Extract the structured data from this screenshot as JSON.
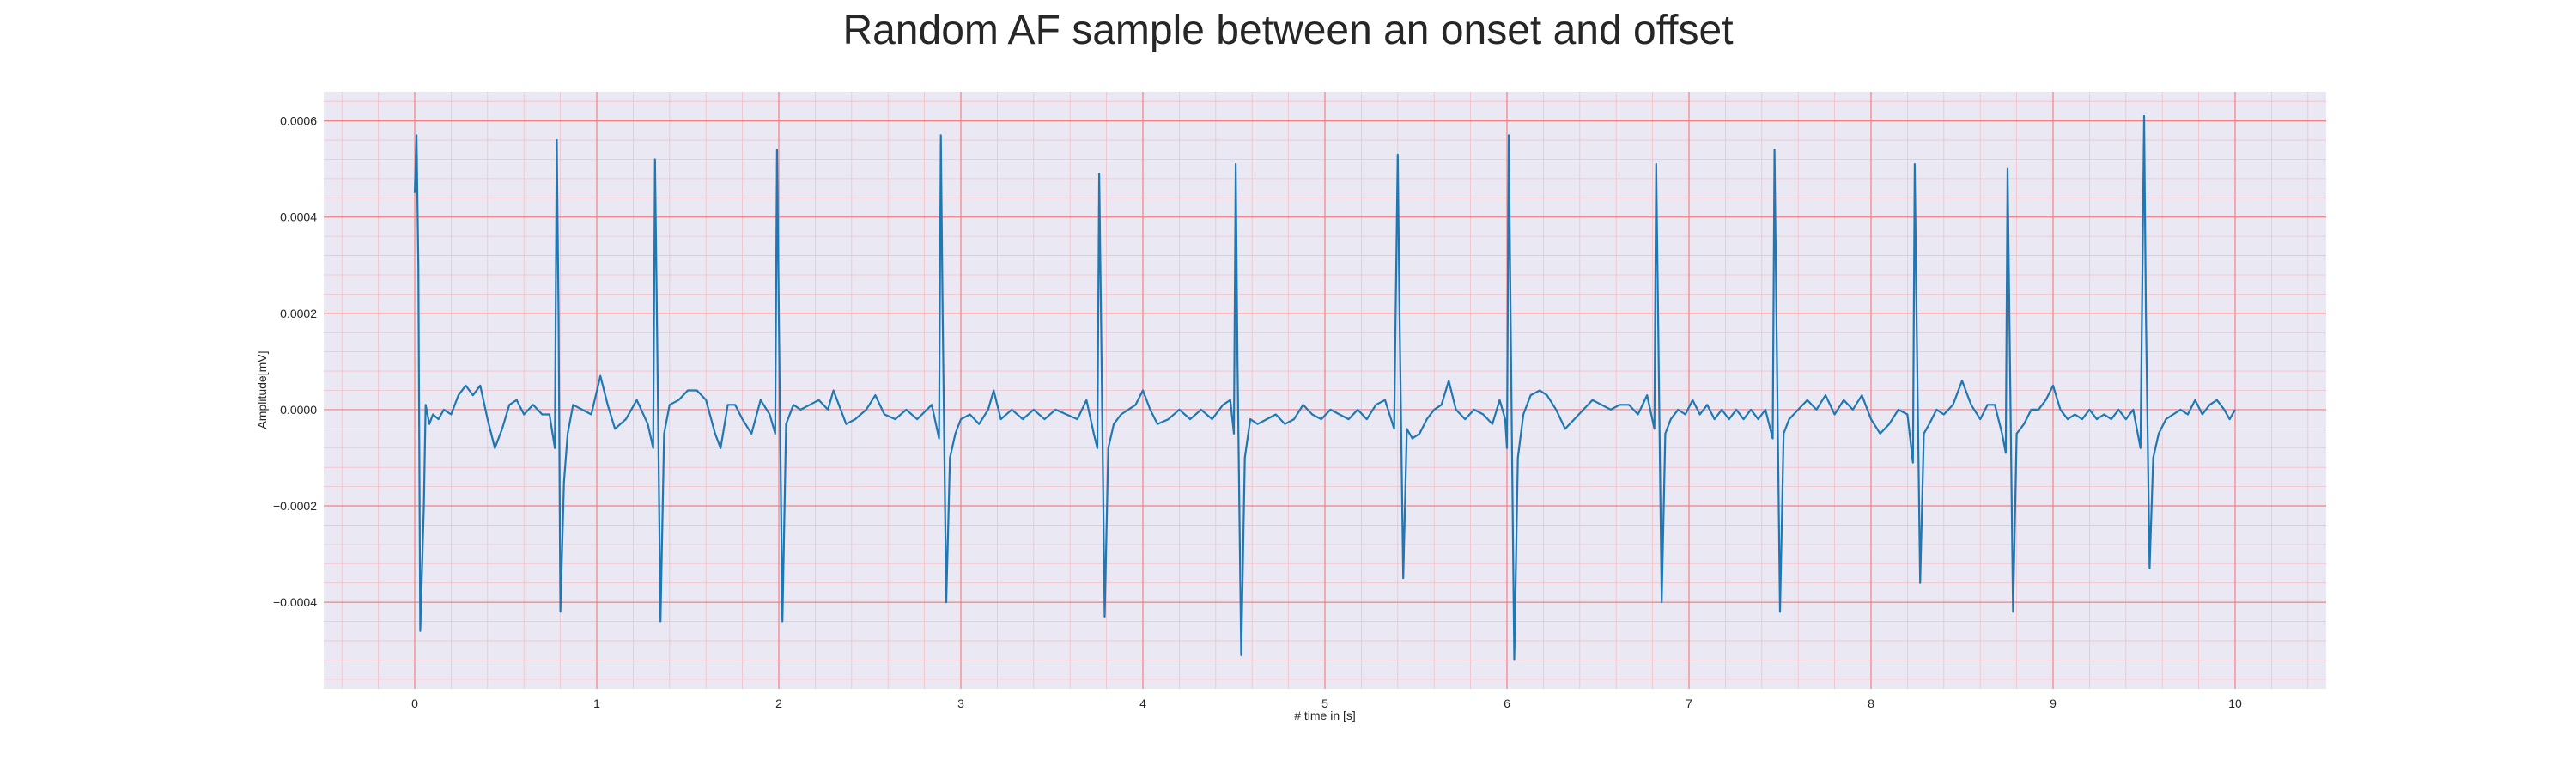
{
  "chart_data": {
    "type": "line",
    "title": "Random AF sample between an onset and offset",
    "xlabel": "# time in [s]",
    "ylabel": "Amplitude[mV]",
    "xlim": [
      -0.5,
      10.5
    ],
    "ylim": [
      -0.00058,
      0.00066
    ],
    "x_ticks": [
      0,
      1,
      2,
      3,
      4,
      5,
      6,
      7,
      8,
      9,
      10
    ],
    "x_tick_labels": [
      "0",
      "1",
      "2",
      "3",
      "4",
      "5",
      "6",
      "7",
      "8",
      "9",
      "10"
    ],
    "y_ticks": [
      -0.0004,
      -0.0002,
      0.0,
      0.0002,
      0.0004,
      0.0006
    ],
    "y_tick_labels": [
      "−0.0004",
      "−0.0002",
      "0.0000",
      "0.0002",
      "0.0004",
      "0.0006"
    ],
    "x_minor_step": 0.2,
    "y_minor_step": 4e-05,
    "grid": true,
    "background_color": "#eae9f3",
    "major_grid_color": "#f08080",
    "minor_grid_color": "#f5bfc8",
    "line_color": "#1f77b4",
    "series": [
      {
        "values": [
          [
            0.0,
            0.00045
          ],
          [
            0.01,
            0.00057
          ],
          [
            0.02,
            0.0003
          ],
          [
            0.03,
            -0.00046
          ],
          [
            0.05,
            -0.0002
          ],
          [
            0.06,
            1e-05
          ],
          [
            0.08,
            -3e-05
          ],
          [
            0.1,
            -1e-05
          ],
          [
            0.13,
            -2e-05
          ],
          [
            0.16,
            0.0
          ],
          [
            0.2,
            -1e-05
          ],
          [
            0.24,
            3e-05
          ],
          [
            0.28,
            5e-05
          ],
          [
            0.32,
            3e-05
          ],
          [
            0.36,
            5e-05
          ],
          [
            0.4,
            -2e-05
          ],
          [
            0.44,
            -8e-05
          ],
          [
            0.48,
            -4e-05
          ],
          [
            0.52,
            1e-05
          ],
          [
            0.56,
            2e-05
          ],
          [
            0.6,
            -1e-05
          ],
          [
            0.65,
            1e-05
          ],
          [
            0.7,
            -1e-05
          ],
          [
            0.74,
            -1e-05
          ],
          [
            0.77,
            -8e-05
          ],
          [
            0.78,
            0.00056
          ],
          [
            0.79,
            0.0002
          ],
          [
            0.8,
            -0.00042
          ],
          [
            0.82,
            -0.00015
          ],
          [
            0.84,
            -5e-05
          ],
          [
            0.87,
            1e-05
          ],
          [
            0.92,
            0.0
          ],
          [
            0.97,
            -1e-05
          ],
          [
            1.02,
            7e-05
          ],
          [
            1.06,
            1e-05
          ],
          [
            1.1,
            -4e-05
          ],
          [
            1.16,
            -2e-05
          ],
          [
            1.22,
            2e-05
          ],
          [
            1.28,
            -3e-05
          ],
          [
            1.31,
            -8e-05
          ],
          [
            1.32,
            0.00052
          ],
          [
            1.33,
            0.0002
          ],
          [
            1.35,
            -0.00044
          ],
          [
            1.37,
            -5e-05
          ],
          [
            1.4,
            1e-05
          ],
          [
            1.45,
            2e-05
          ],
          [
            1.5,
            4e-05
          ],
          [
            1.55,
            4e-05
          ],
          [
            1.6,
            2e-05
          ],
          [
            1.65,
            -5e-05
          ],
          [
            1.68,
            -8e-05
          ],
          [
            1.72,
            1e-05
          ],
          [
            1.76,
            1e-05
          ],
          [
            1.8,
            -2e-05
          ],
          [
            1.85,
            -5e-05
          ],
          [
            1.9,
            2e-05
          ],
          [
            1.95,
            -1e-05
          ],
          [
            1.98,
            -5e-05
          ],
          [
            1.99,
            0.00054
          ],
          [
            2.0,
            0.0002
          ],
          [
            2.02,
            -0.00044
          ],
          [
            2.04,
            -3e-05
          ],
          [
            2.08,
            1e-05
          ],
          [
            2.12,
            0.0
          ],
          [
            2.17,
            1e-05
          ],
          [
            2.22,
            2e-05
          ],
          [
            2.27,
            0.0
          ],
          [
            2.3,
            4e-05
          ],
          [
            2.33,
            1e-05
          ],
          [
            2.37,
            -3e-05
          ],
          [
            2.42,
            -2e-05
          ],
          [
            2.48,
            0.0
          ],
          [
            2.53,
            3e-05
          ],
          [
            2.58,
            -1e-05
          ],
          [
            2.64,
            -2e-05
          ],
          [
            2.7,
            0.0
          ],
          [
            2.76,
            -2e-05
          ],
          [
            2.84,
            1e-05
          ],
          [
            2.88,
            -6e-05
          ],
          [
            2.89,
            0.00057
          ],
          [
            2.9,
            0.0002
          ],
          [
            2.92,
            -0.0004
          ],
          [
            2.94,
            -0.0001
          ],
          [
            2.97,
            -5e-05
          ],
          [
            3.0,
            -2e-05
          ],
          [
            3.05,
            -1e-05
          ],
          [
            3.1,
            -3e-05
          ],
          [
            3.15,
            0.0
          ],
          [
            3.18,
            4e-05
          ],
          [
            3.22,
            -2e-05
          ],
          [
            3.28,
            0.0
          ],
          [
            3.34,
            -2e-05
          ],
          [
            3.4,
            0.0
          ],
          [
            3.46,
            -2e-05
          ],
          [
            3.52,
            0.0
          ],
          [
            3.58,
            -1e-05
          ],
          [
            3.64,
            -2e-05
          ],
          [
            3.69,
            2e-05
          ],
          [
            3.73,
            -5e-05
          ],
          [
            3.75,
            -8e-05
          ],
          [
            3.76,
            0.00049
          ],
          [
            3.77,
            0.0002
          ],
          [
            3.79,
            -0.00043
          ],
          [
            3.81,
            -8e-05
          ],
          [
            3.84,
            -3e-05
          ],
          [
            3.88,
            -1e-05
          ],
          [
            3.92,
            0.0
          ],
          [
            3.96,
            1e-05
          ],
          [
            4.0,
            4e-05
          ],
          [
            4.04,
            0.0
          ],
          [
            4.08,
            -3e-05
          ],
          [
            4.14,
            -2e-05
          ],
          [
            4.2,
            0.0
          ],
          [
            4.26,
            -2e-05
          ],
          [
            4.32,
            0.0
          ],
          [
            4.38,
            -2e-05
          ],
          [
            4.44,
            1e-05
          ],
          [
            4.48,
            2e-05
          ],
          [
            4.5,
            -5e-05
          ],
          [
            4.51,
            0.00051
          ],
          [
            4.52,
            0.0001
          ],
          [
            4.54,
            -0.00051
          ],
          [
            4.56,
            -0.0001
          ],
          [
            4.59,
            -2e-05
          ],
          [
            4.63,
            -3e-05
          ],
          [
            4.68,
            -2e-05
          ],
          [
            4.73,
            -1e-05
          ],
          [
            4.78,
            -3e-05
          ],
          [
            4.83,
            -2e-05
          ],
          [
            4.88,
            1e-05
          ],
          [
            4.93,
            -1e-05
          ],
          [
            4.98,
            -2e-05
          ],
          [
            5.03,
            0.0
          ],
          [
            5.08,
            -1e-05
          ],
          [
            5.13,
            -2e-05
          ],
          [
            5.18,
            0.0
          ],
          [
            5.23,
            -2e-05
          ],
          [
            5.28,
            1e-05
          ],
          [
            5.33,
            2e-05
          ],
          [
            5.38,
            -4e-05
          ],
          [
            5.4,
            0.00053
          ],
          [
            5.41,
            0.0002
          ],
          [
            5.43,
            -0.00035
          ],
          [
            5.45,
            -4e-05
          ],
          [
            5.48,
            -6e-05
          ],
          [
            5.52,
            -5e-05
          ],
          [
            5.56,
            -2e-05
          ],
          [
            5.6,
            0.0
          ],
          [
            5.64,
            1e-05
          ],
          [
            5.68,
            6e-05
          ],
          [
            5.72,
            0.0
          ],
          [
            5.77,
            -2e-05
          ],
          [
            5.82,
            0.0
          ],
          [
            5.87,
            -1e-05
          ],
          [
            5.92,
            -3e-05
          ],
          [
            5.96,
            2e-05
          ],
          [
            5.99,
            -2e-05
          ],
          [
            6.0,
            -8e-05
          ],
          [
            6.01,
            0.00057
          ],
          [
            6.02,
            0.0002
          ],
          [
            6.04,
            -0.00052
          ],
          [
            6.06,
            -0.0001
          ],
          [
            6.09,
            -1e-05
          ],
          [
            6.13,
            3e-05
          ],
          [
            6.18,
            4e-05
          ],
          [
            6.22,
            3e-05
          ],
          [
            6.27,
            0.0
          ],
          [
            6.32,
            -4e-05
          ],
          [
            6.37,
            -2e-05
          ],
          [
            6.42,
            0.0
          ],
          [
            6.47,
            2e-05
          ],
          [
            6.52,
            1e-05
          ],
          [
            6.57,
            0.0
          ],
          [
            6.62,
            1e-05
          ],
          [
            6.67,
            1e-05
          ],
          [
            6.72,
            -1e-05
          ],
          [
            6.77,
            3e-05
          ],
          [
            6.81,
            -4e-05
          ],
          [
            6.82,
            0.00051
          ],
          [
            6.83,
            0.0002
          ],
          [
            6.85,
            -0.0004
          ],
          [
            6.87,
            -5e-05
          ],
          [
            6.9,
            -2e-05
          ],
          [
            6.94,
            0.0
          ],
          [
            6.98,
            -1e-05
          ],
          [
            7.02,
            2e-05
          ],
          [
            7.06,
            -1e-05
          ],
          [
            7.1,
            1e-05
          ],
          [
            7.14,
            -2e-05
          ],
          [
            7.18,
            0.0
          ],
          [
            7.22,
            -2e-05
          ],
          [
            7.26,
            0.0
          ],
          [
            7.3,
            -2e-05
          ],
          [
            7.34,
            0.0
          ],
          [
            7.38,
            -2e-05
          ],
          [
            7.42,
            0.0
          ],
          [
            7.46,
            -6e-05
          ],
          [
            7.47,
            0.00054
          ],
          [
            7.48,
            0.0002
          ],
          [
            7.5,
            -0.00042
          ],
          [
            7.52,
            -5e-05
          ],
          [
            7.55,
            -2e-05
          ],
          [
            7.6,
            0.0
          ],
          [
            7.65,
            2e-05
          ],
          [
            7.7,
            0.0
          ],
          [
            7.75,
            3e-05
          ],
          [
            7.8,
            -1e-05
          ],
          [
            7.85,
            2e-05
          ],
          [
            7.9,
            0.0
          ],
          [
            7.95,
            3e-05
          ],
          [
            8.0,
            -2e-05
          ],
          [
            8.05,
            -5e-05
          ],
          [
            8.1,
            -3e-05
          ],
          [
            8.15,
            0.0
          ],
          [
            8.2,
            -1e-05
          ],
          [
            8.23,
            -0.00011
          ],
          [
            8.24,
            0.00051
          ],
          [
            8.25,
            0.0002
          ],
          [
            8.27,
            -0.00036
          ],
          [
            8.29,
            -5e-05
          ],
          [
            8.32,
            -3e-05
          ],
          [
            8.36,
            0.0
          ],
          [
            8.4,
            -1e-05
          ],
          [
            8.45,
            1e-05
          ],
          [
            8.5,
            6e-05
          ],
          [
            8.55,
            1e-05
          ],
          [
            8.6,
            -2e-05
          ],
          [
            8.64,
            1e-05
          ],
          [
            8.68,
            1e-05
          ],
          [
            8.72,
            -5e-05
          ],
          [
            8.74,
            -9e-05
          ],
          [
            8.75,
            0.0005
          ],
          [
            8.76,
            0.0002
          ],
          [
            8.78,
            -0.00042
          ],
          [
            8.8,
            -5e-05
          ],
          [
            8.84,
            -3e-05
          ],
          [
            8.88,
            0.0
          ],
          [
            8.92,
            0.0
          ],
          [
            8.96,
            2e-05
          ],
          [
            9.0,
            5e-05
          ],
          [
            9.04,
            0.0
          ],
          [
            9.08,
            -2e-05
          ],
          [
            9.12,
            -1e-05
          ],
          [
            9.16,
            -2e-05
          ],
          [
            9.2,
            0.0
          ],
          [
            9.24,
            -2e-05
          ],
          [
            9.28,
            -1e-05
          ],
          [
            9.32,
            -2e-05
          ],
          [
            9.36,
            0.0
          ],
          [
            9.4,
            -2e-05
          ],
          [
            9.44,
            0.0
          ],
          [
            9.48,
            -8e-05
          ],
          [
            9.5,
            0.00061
          ],
          [
            9.51,
            0.0002
          ],
          [
            9.53,
            -0.00033
          ],
          [
            9.55,
            -0.0001
          ],
          [
            9.58,
            -5e-05
          ],
          [
            9.62,
            -2e-05
          ],
          [
            9.66,
            -1e-05
          ],
          [
            9.7,
            0.0
          ],
          [
            9.74,
            -1e-05
          ],
          [
            9.78,
            2e-05
          ],
          [
            9.82,
            -1e-05
          ],
          [
            9.86,
            1e-05
          ],
          [
            9.9,
            2e-05
          ],
          [
            9.94,
            0.0
          ],
          [
            9.97,
            -2e-05
          ],
          [
            10.0,
            0.0
          ]
        ]
      }
    ]
  }
}
